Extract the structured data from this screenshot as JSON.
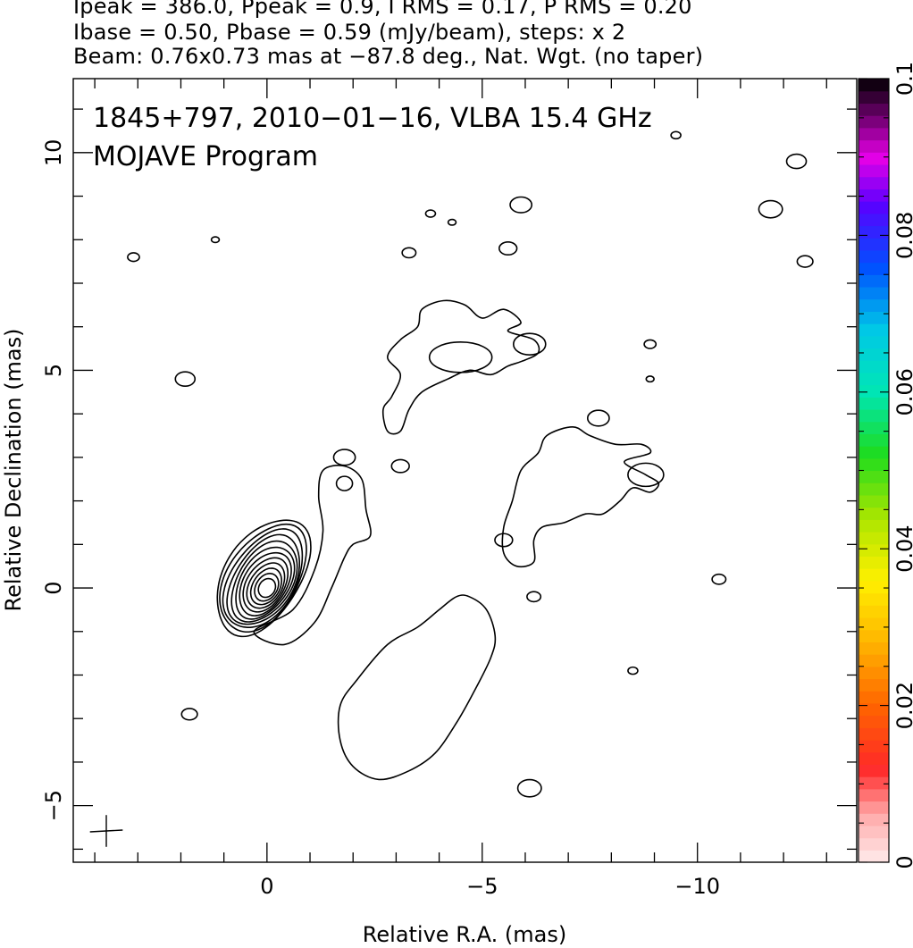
{
  "header": {
    "line1": "Ipeak = 386.0, Ppeak = 0.9, I RMS = 0.17, P RMS = 0.20",
    "line2": "Ibase = 0.50, Pbase = 0.59 (mJy/beam), steps: x 2",
    "line3": "Beam: 0.76x0.73 mas at −87.8 deg., Nat. Wgt. (no taper)"
  },
  "chart_data": {
    "type": "contour",
    "annotations": [
      "1845+797, 2010−01−16, VLBA 15.4 GHz",
      "MOJAVE Program"
    ],
    "xlabel": "Relative R.A. (mas)",
    "ylabel": "Relative Declination (mas)",
    "x_axis": {
      "reversed": true,
      "xlim": [
        4.5,
        -13.7
      ],
      "ticks": [
        0,
        -5,
        -10
      ],
      "tick_labels": [
        "0",
        "−5",
        "−10"
      ]
    },
    "y_axis": {
      "ylim": [
        -6.3,
        11.7
      ],
      "ticks": [
        -5,
        0,
        5,
        10
      ],
      "tick_labels": [
        "−5",
        "0",
        "5",
        "10"
      ]
    },
    "colorbar": {
      "range": [
        0,
        0.1
      ],
      "ticks": [
        0,
        0.02,
        0.04,
        0.06,
        0.08,
        0.1
      ],
      "tick_labels": [
        "0",
        "0.02",
        "0.04",
        "0.06",
        "0.08",
        "0.1"
      ]
    },
    "core": {
      "x": 0,
      "y": 0,
      "contour_levels": 12
    },
    "beam": {
      "major_mas": 0.76,
      "minor_mas": 0.73,
      "pa_deg": -87.8
    },
    "lobes": [
      {
        "name": "southwest-lobe",
        "points": [
          [
            -4.7,
            -0.2
          ],
          [
            -5.1,
            -0.5
          ],
          [
            -5.3,
            -1.1
          ],
          [
            -5.2,
            -1.6
          ],
          [
            -4.8,
            -2.4
          ],
          [
            -4.4,
            -3.1
          ],
          [
            -3.9,
            -3.8
          ],
          [
            -3.3,
            -4.2
          ],
          [
            -2.6,
            -4.4
          ],
          [
            -2.0,
            -4.1
          ],
          [
            -1.7,
            -3.5
          ],
          [
            -1.7,
            -2.7
          ],
          [
            -2.1,
            -2.1
          ],
          [
            -2.8,
            -1.3
          ],
          [
            -3.5,
            -0.9
          ],
          [
            -4.0,
            -0.5
          ],
          [
            -4.4,
            -0.2
          ]
        ]
      },
      {
        "name": "west-lobe",
        "points": [
          [
            -6.5,
            3.5
          ],
          [
            -7.1,
            3.7
          ],
          [
            -7.5,
            3.5
          ],
          [
            -8.1,
            3.3
          ],
          [
            -8.7,
            3.3
          ],
          [
            -8.9,
            3.1
          ],
          [
            -8.3,
            2.9
          ],
          [
            -8.8,
            2.6
          ],
          [
            -9.1,
            2.4
          ],
          [
            -8.9,
            2.2
          ],
          [
            -8.5,
            2.3
          ],
          [
            -8.2,
            2.0
          ],
          [
            -7.8,
            1.7
          ],
          [
            -7.4,
            1.7
          ],
          [
            -6.9,
            1.5
          ],
          [
            -6.4,
            1.4
          ],
          [
            -6.2,
            1.1
          ],
          [
            -6.2,
            0.6
          ],
          [
            -5.8,
            0.5
          ],
          [
            -5.5,
            0.8
          ],
          [
            -5.5,
            1.4
          ],
          [
            -5.7,
            2.0
          ],
          [
            -5.9,
            2.7
          ],
          [
            -6.3,
            3.1
          ]
        ]
      },
      {
        "name": "north-lobe",
        "points": [
          [
            -3.6,
            6.4
          ],
          [
            -4.1,
            6.6
          ],
          [
            -4.6,
            6.5
          ],
          [
            -5.0,
            6.2
          ],
          [
            -5.5,
            6.4
          ],
          [
            -5.9,
            6.1
          ],
          [
            -5.6,
            5.9
          ],
          [
            -6.2,
            5.7
          ],
          [
            -6.3,
            5.4
          ],
          [
            -5.9,
            5.2
          ],
          [
            -5.6,
            5.1
          ],
          [
            -5.2,
            4.9
          ],
          [
            -4.7,
            5.0
          ],
          [
            -4.2,
            4.8
          ],
          [
            -3.6,
            4.5
          ],
          [
            -3.3,
            4.1
          ],
          [
            -3.1,
            3.6
          ],
          [
            -2.8,
            3.6
          ],
          [
            -2.7,
            4.1
          ],
          [
            -2.9,
            4.4
          ],
          [
            -3.1,
            4.9
          ],
          [
            -2.8,
            5.3
          ],
          [
            -3.1,
            5.7
          ],
          [
            -3.5,
            6.0
          ]
        ]
      }
    ],
    "noise_blobs": [
      [
        -4.3,
        8.4
      ],
      [
        -5.9,
        8.8
      ],
      [
        -5.6,
        7.8
      ],
      [
        -3.3,
        7.7
      ],
      [
        -3.8,
        8.6
      ],
      [
        -11.7,
        8.7
      ],
      [
        -12.3,
        9.8
      ],
      [
        -12.5,
        7.5
      ],
      [
        -8.9,
        5.6
      ],
      [
        -8.9,
        4.8
      ],
      [
        -7.7,
        3.9
      ],
      [
        -5.5,
        1.1
      ],
      [
        -6.2,
        -0.2
      ],
      [
        -8.5,
        -1.9
      ],
      [
        -6.1,
        -4.6
      ],
      [
        1.9,
        4.8
      ],
      [
        1.8,
        -2.9
      ],
      [
        3.1,
        7.6
      ],
      [
        1.2,
        8.0
      ],
      [
        -1.8,
        3.0
      ],
      [
        -3.1,
        2.8
      ],
      [
        -10.5,
        0.2
      ],
      [
        -9.5,
        10.4
      ]
    ]
  }
}
